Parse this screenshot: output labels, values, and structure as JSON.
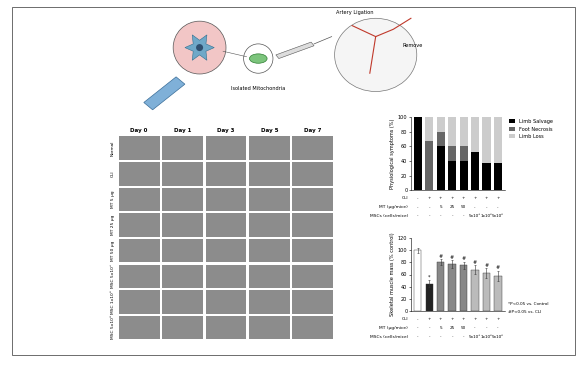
{
  "schematic": {
    "labels": [
      "Artery Ligation",
      "Isolated Mitochondria",
      "Remove"
    ]
  },
  "image_grid": {
    "columns": [
      "Day 0",
      "Day 1",
      "Day 3",
      "Day 5",
      "Day 7"
    ],
    "rows": [
      "Normal",
      "CLI",
      "MT 5 µg",
      "MT 25 µg",
      "MT 50 µg",
      "MSC 5x10⁵",
      "MSC 1x10⁶",
      "MSC 5x10⁶"
    ]
  },
  "chart_data": [
    {
      "type": "bar",
      "stacked": true,
      "ylabel": "Physiological symptoms (%)",
      "ylim": [
        0,
        100
      ],
      "yticks": [
        0,
        20,
        40,
        60,
        80,
        100
      ],
      "legend": "upper left",
      "x_table": [
        {
          "label": "CLI",
          "cells": [
            "-",
            "+",
            "+",
            "+",
            "+",
            "+",
            "+",
            "+"
          ]
        },
        {
          "label": "MT (µg/mice)",
          "cells": [
            "-",
            "-",
            "5",
            "25",
            "50",
            "-",
            "-",
            "-"
          ]
        },
        {
          "label": "MSCs (cells/mice)",
          "cells": [
            "-",
            "-",
            "-",
            "-",
            "-",
            "5x10⁵",
            "1x10⁶",
            "5x10⁶"
          ]
        }
      ],
      "series": [
        {
          "name": "Limb Salvage",
          "color": "#000000",
          "values": [
            100,
            0,
            60,
            40,
            40,
            53,
            38,
            37
          ]
        },
        {
          "name": "Foot Necrosis",
          "color": "#666666",
          "values": [
            0,
            67,
            20,
            20,
            20,
            0,
            0,
            0
          ]
        },
        {
          "name": "Limb Loss",
          "color": "#cccccc",
          "values": [
            0,
            33,
            20,
            40,
            40,
            47,
            62,
            63
          ]
        }
      ]
    },
    {
      "type": "bar",
      "ylabel": "Skeletal muscle mass (% control)",
      "ylim": [
        0,
        120
      ],
      "yticks": [
        0,
        20,
        40,
        60,
        80,
        100,
        120
      ],
      "x_table": [
        {
          "label": "CLI",
          "cells": [
            "-",
            "+",
            "+",
            "+",
            "+",
            "+",
            "+",
            "+"
          ]
        },
        {
          "label": "MT (µg/mice)",
          "cells": [
            "-",
            "-",
            "5",
            "25",
            "50",
            "-",
            "-",
            "-"
          ]
        },
        {
          "label": "MSCs (cells/mice)",
          "cells": [
            "-",
            "-",
            "-",
            "-",
            "-",
            "5x10⁵",
            "1x10⁶",
            "5x10⁶"
          ]
        }
      ],
      "values": [
        100,
        45,
        80,
        77,
        75,
        68,
        62,
        58
      ],
      "errors": [
        4,
        6,
        5,
        6,
        6,
        7,
        8,
        8
      ],
      "colors": [
        "#ffffff",
        "#222222",
        "#888888",
        "#888888",
        "#888888",
        "#bbbbbb",
        "#bbbbbb",
        "#bbbbbb"
      ],
      "markers": [
        null,
        "*",
        "#",
        "#",
        "#",
        "#",
        "#",
        "#"
      ],
      "notes": [
        "*P<0.05 vs. Control",
        "#P<0.05 vs. CLI"
      ]
    }
  ]
}
